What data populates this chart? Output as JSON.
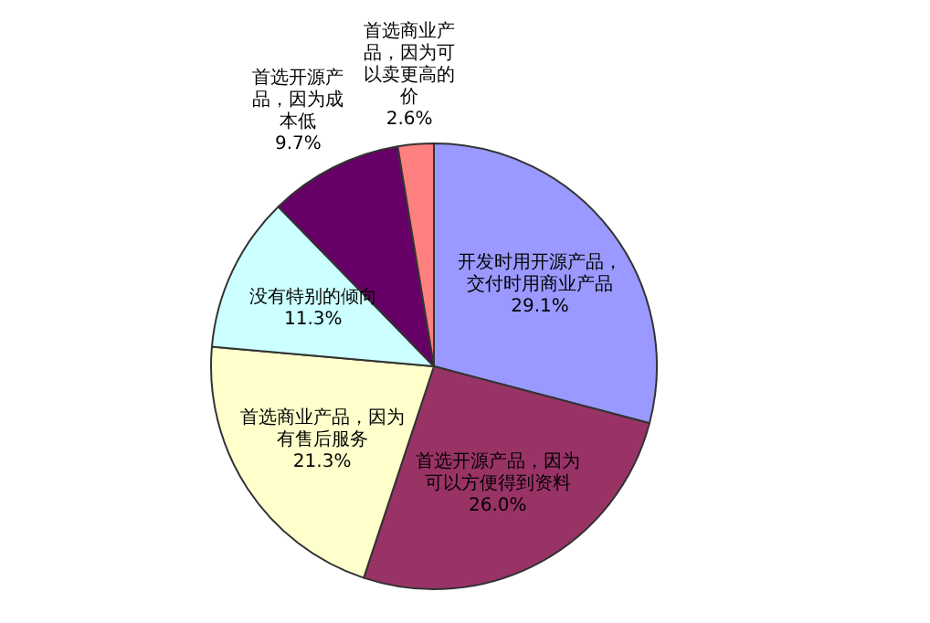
{
  "chart_data": {
    "type": "pie",
    "categories": [
      "开发时用开源产品，交付时用商业产品",
      "首选开源产品，因为可以方便得到资料",
      "首选商业产品，因为有售后服务",
      "没有特别的倾向",
      "首选开源产品，因为成本低",
      "首选商业产品，因为可以卖更高的价"
    ],
    "values": [
      29.1,
      26.0,
      21.3,
      11.3,
      9.7,
      2.6
    ],
    "value_labels": [
      "29.1%",
      "26.0%",
      "21.3%",
      "11.3%",
      "9.7%",
      "2.6%"
    ],
    "colors": [
      "#9999ff",
      "#993366",
      "#ffffcc",
      "#ccffff",
      "#660066",
      "#ff8080"
    ],
    "legend": false
  }
}
